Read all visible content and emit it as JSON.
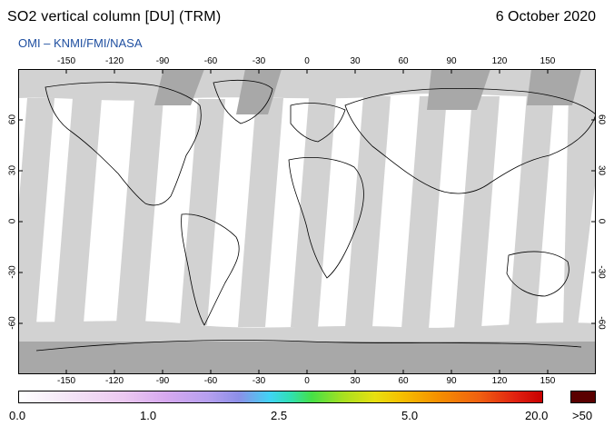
{
  "header": {
    "title": "SO2 vertical column [DU] (TRM)",
    "date": "6 October 2020",
    "subtitle": "OMI  –  KNMI/FMI/NASA"
  },
  "map": {
    "lon_ticks": [
      "-150",
      "-120",
      "-90",
      "-60",
      "-30",
      "0",
      "30",
      "60",
      "90",
      "120",
      "150"
    ],
    "lat_ticks": [
      "60",
      "30",
      "0",
      "-30",
      "-60"
    ],
    "lon_range": [
      -180,
      180
    ],
    "lat_range": [
      -90,
      90
    ],
    "colors": {
      "ocean": "#ffffff",
      "no_data": "#d2d2d2",
      "no_data_dark": "#a8a8a8",
      "coastline": "#000000"
    }
  },
  "colorbar": {
    "labels": [
      "0.0",
      "1.0",
      "2.5",
      "5.0",
      "20.0",
      ">50"
    ],
    "overflow_color": "#5a0000"
  }
}
